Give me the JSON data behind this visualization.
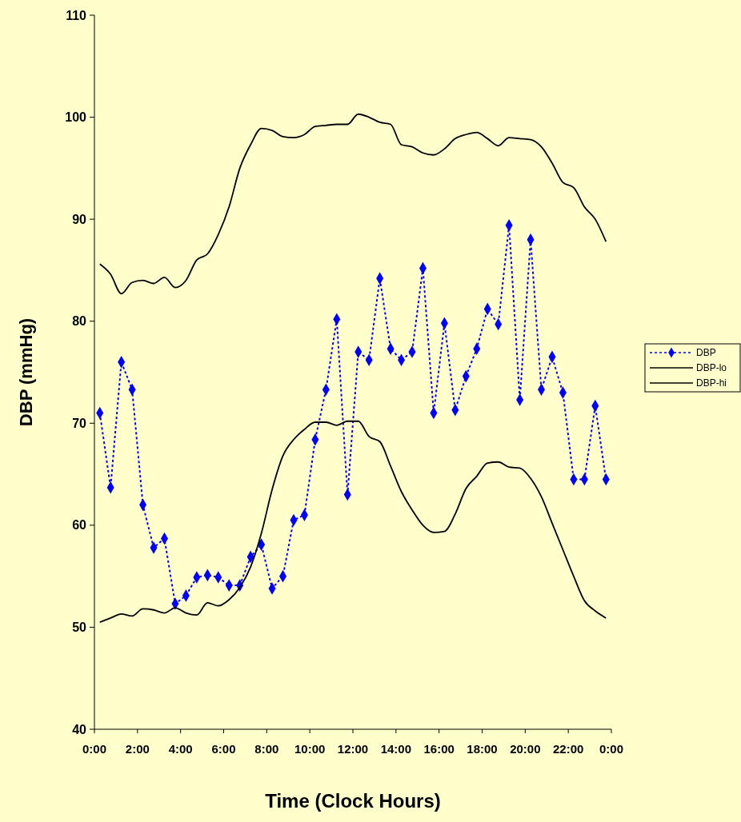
{
  "chart_data": {
    "type": "line",
    "xlabel": "Time (Clock Hours)",
    "ylabel": "DBP (mmHg)",
    "xlim": [
      0,
      24
    ],
    "xticks": [
      {
        "value": 0,
        "label": "0:00"
      },
      {
        "value": 2,
        "label": "2:00"
      },
      {
        "value": 4,
        "label": "4:00"
      },
      {
        "value": 6,
        "label": "6:00"
      },
      {
        "value": 8,
        "label": "8:00"
      },
      {
        "value": 10,
        "label": "10:00"
      },
      {
        "value": 12,
        "label": "12:00"
      },
      {
        "value": 14,
        "label": "14:00"
      },
      {
        "value": 16,
        "label": "16:00"
      },
      {
        "value": 18,
        "label": "18:00"
      },
      {
        "value": 20,
        "label": "20:00"
      },
      {
        "value": 22,
        "label": "22:00"
      },
      {
        "value": 24,
        "label": "0:00"
      }
    ],
    "ylim": [
      40,
      110
    ],
    "yticks": [
      40,
      50,
      60,
      70,
      80,
      90,
      100,
      110
    ],
    "grid": false,
    "legend": "right",
    "x": [
      0.25,
      0.75,
      1.25,
      1.75,
      2.25,
      2.75,
      3.25,
      3.75,
      4.25,
      4.75,
      5.25,
      5.75,
      6.25,
      6.75,
      7.25,
      7.75,
      8.25,
      8.75,
      9.25,
      9.75,
      10.25,
      10.75,
      11.25,
      11.75,
      12.25,
      12.75,
      13.25,
      13.75,
      14.25,
      14.75,
      15.25,
      15.75,
      16.25,
      16.75,
      17.25,
      17.75,
      18.25,
      18.75,
      19.25,
      19.75,
      20.25,
      20.75,
      21.25,
      21.75,
      22.25,
      22.75,
      23.25,
      23.75
    ],
    "series": [
      {
        "name": "DBP",
        "color": "#0000ff",
        "marker": "diamond",
        "line_style": "dotted",
        "values": [
          71.0,
          63.7,
          76.0,
          73.3,
          62.0,
          57.8,
          58.7,
          52.3,
          53.1,
          54.9,
          55.1,
          54.9,
          54.1,
          54.1,
          56.9,
          58.1,
          53.8,
          55.0,
          60.5,
          61.0,
          68.4,
          73.3,
          80.2,
          63.0,
          77.0,
          76.2,
          84.2,
          77.3,
          76.2,
          77.0,
          85.2,
          71.0,
          79.8,
          71.3,
          74.6,
          77.3,
          81.2,
          79.7,
          89.4,
          72.3,
          88.0,
          73.3,
          76.5,
          73.0,
          64.5,
          64.5,
          71.7,
          64.5
        ]
      },
      {
        "name": "DBP-lo",
        "color": "#000000",
        "marker": "none",
        "line_style": "solid",
        "values": [
          50.5,
          50.9,
          51.3,
          51.1,
          51.8,
          51.7,
          51.4,
          51.9,
          51.4,
          51.2,
          52.4,
          52.1,
          52.7,
          53.9,
          55.9,
          59.2,
          63.5,
          66.8,
          68.4,
          69.4,
          70.1,
          70.1,
          69.8,
          70.2,
          70.2,
          68.7,
          68.2,
          65.8,
          63.3,
          61.5,
          60.0,
          59.3,
          59.4,
          61.1,
          63.6,
          64.8,
          66.1,
          66.2,
          65.7,
          65.6,
          64.6,
          62.8,
          60.2,
          57.6,
          55.0,
          52.6,
          51.6,
          50.9
        ]
      },
      {
        "name": "DBP-hi",
        "color": "#000000",
        "marker": "none",
        "line_style": "solid",
        "values": [
          85.6,
          84.6,
          82.7,
          83.8,
          84.0,
          83.7,
          84.3,
          83.3,
          84.0,
          86.0,
          86.6,
          88.5,
          91.2,
          95.0,
          97.3,
          98.9,
          98.7,
          98.1,
          98.0,
          98.3,
          99.1,
          99.2,
          99.3,
          99.3,
          100.3,
          100.0,
          99.5,
          99.3,
          97.3,
          97.1,
          96.5,
          96.3,
          96.9,
          97.9,
          98.3,
          98.5,
          97.9,
          97.2,
          98.0,
          97.9,
          97.8,
          97.1,
          95.5,
          93.6,
          93.1,
          91.2,
          90.0,
          87.8
        ]
      }
    ]
  }
}
